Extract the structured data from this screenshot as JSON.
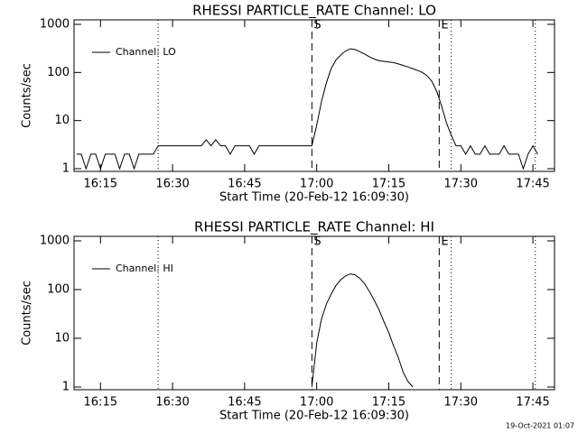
{
  "chart_data": [
    {
      "type": "line",
      "title": "RHESSI PARTICLE_RATE Channel: LO",
      "x_label": "Start Time (20-Feb-12 16:09:30)",
      "y_label": "Counts/sec",
      "log_y": true,
      "legend": "top-left",
      "xlim": [
        969.5,
        1069.5
      ],
      "xticks": [
        {
          "value": 975,
          "label": "16:15"
        },
        {
          "value": 990,
          "label": "16:30"
        },
        {
          "value": 1005,
          "label": "16:45"
        },
        {
          "value": 1020,
          "label": "17:00"
        },
        {
          "value": 1035,
          "label": "17:15"
        },
        {
          "value": 1050,
          "label": "17:30"
        },
        {
          "value": 1065,
          "label": "17:45"
        }
      ],
      "ylim": [
        1,
        1000
      ],
      "yticks": [
        1,
        10,
        100,
        1000
      ],
      "markers": [
        {
          "value": 987,
          "style": "dotted"
        },
        {
          "value": 1019,
          "style": "dashed",
          "label": "S"
        },
        {
          "value": 1045.5,
          "style": "dashed",
          "label": "E"
        },
        {
          "value": 1048,
          "style": "dotted"
        },
        {
          "value": 1065.5,
          "style": "dotted"
        }
      ],
      "x": [
        970,
        971,
        972,
        973,
        974,
        975,
        976,
        977,
        978,
        979,
        980,
        981,
        982,
        983,
        984,
        985,
        986,
        987,
        988,
        989,
        990,
        991,
        992,
        993,
        994,
        995,
        996,
        997,
        998,
        999,
        1000,
        1001,
        1002,
        1003,
        1004,
        1005,
        1006,
        1007,
        1008,
        1009,
        1010,
        1011,
        1012,
        1013,
        1014,
        1015,
        1016,
        1017,
        1018,
        1019,
        1020,
        1021,
        1022,
        1023,
        1024,
        1025,
        1026,
        1027,
        1028,
        1029,
        1030,
        1031,
        1032,
        1033,
        1034,
        1035,
        1036,
        1037,
        1038,
        1039,
        1040,
        1041,
        1042,
        1043,
        1044,
        1045,
        1046,
        1047,
        1048,
        1049,
        1050,
        1051,
        1052,
        1053,
        1054,
        1055,
        1056,
        1057,
        1058,
        1059,
        1060,
        1061,
        1062,
        1063,
        1064,
        1065,
        1066
      ],
      "series": [
        {
          "name": "Channel: LO",
          "color": "#000000",
          "values": [
            2,
            2,
            1,
            2,
            2,
            1,
            2,
            2,
            2,
            1,
            2,
            2,
            1,
            2,
            2,
            2,
            2,
            3,
            3,
            3,
            3,
            3,
            3,
            3,
            3,
            3,
            3,
            4,
            3,
            4,
            3,
            3,
            2,
            3,
            3,
            3,
            3,
            2,
            3,
            3,
            3,
            3,
            3,
            3,
            3,
            3,
            3,
            3,
            3,
            3,
            8,
            25,
            60,
            120,
            180,
            230,
            280,
            310,
            300,
            270,
            240,
            210,
            190,
            175,
            170,
            165,
            160,
            150,
            140,
            130,
            120,
            110,
            100,
            85,
            65,
            40,
            20,
            9,
            5,
            3,
            3,
            2,
            3,
            2,
            2,
            3,
            2,
            2,
            2,
            3,
            2,
            2,
            2,
            1,
            2,
            3,
            2
          ]
        }
      ]
    },
    {
      "type": "line",
      "title": "RHESSI PARTICLE_RATE Channel: HI",
      "x_label": "Start Time (20-Feb-12 16:09:30)",
      "y_label": "Counts/sec",
      "log_y": true,
      "legend": "top-left",
      "xlim": [
        969.5,
        1069.5
      ],
      "xticks": [
        {
          "value": 975,
          "label": "16:15"
        },
        {
          "value": 990,
          "label": "16:30"
        },
        {
          "value": 1005,
          "label": "16:45"
        },
        {
          "value": 1020,
          "label": "17:00"
        },
        {
          "value": 1035,
          "label": "17:15"
        },
        {
          "value": 1050,
          "label": "17:30"
        },
        {
          "value": 1065,
          "label": "17:45"
        }
      ],
      "ylim": [
        1,
        1000
      ],
      "yticks": [
        1,
        10,
        100,
        1000
      ],
      "markers": [
        {
          "value": 987,
          "style": "dotted"
        },
        {
          "value": 1019,
          "style": "dashed",
          "label": "S"
        },
        {
          "value": 1045.5,
          "style": "dashed",
          "label": "E"
        },
        {
          "value": 1048,
          "style": "dotted"
        },
        {
          "value": 1065.5,
          "style": "dotted"
        }
      ],
      "x": [
        1019,
        1020,
        1021,
        1022,
        1023,
        1024,
        1025,
        1026,
        1027,
        1028,
        1029,
        1030,
        1031,
        1032,
        1033,
        1034,
        1035,
        1036,
        1037,
        1038,
        1039,
        1040
      ],
      "series": [
        {
          "name": "Channel: HI",
          "color": "#000000",
          "values": [
            1,
            8,
            25,
            50,
            80,
            120,
            160,
            190,
            210,
            200,
            170,
            130,
            90,
            60,
            38,
            22,
            13,
            7,
            4,
            2,
            1.3,
            1
          ]
        }
      ]
    }
  ],
  "footer": "19-Oct-2021 01:07"
}
